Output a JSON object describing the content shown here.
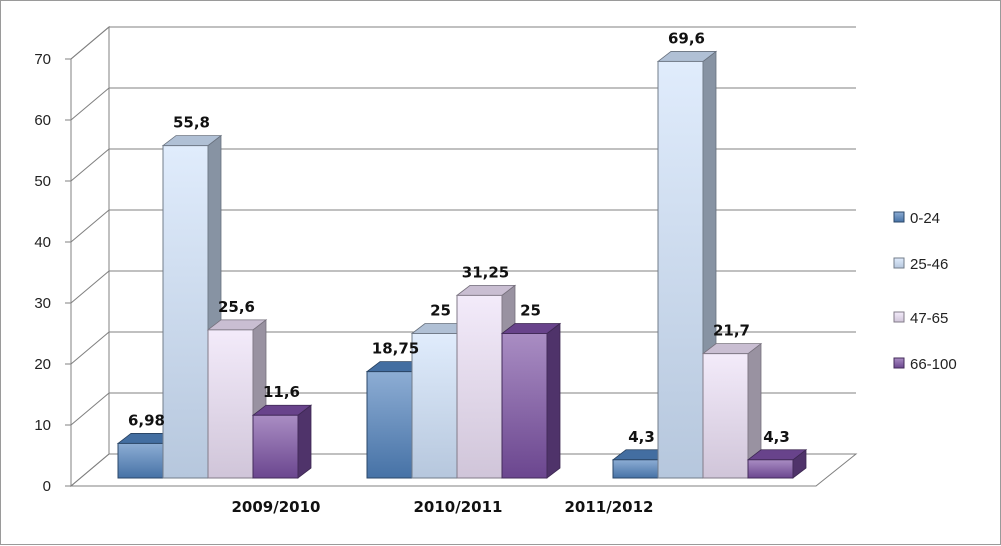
{
  "chart_data": {
    "type": "bar",
    "style": "3d-clustered-column",
    "categories": [
      "2009/2010",
      "2010/2011",
      "2011/2012"
    ],
    "series": [
      {
        "name": "0-24",
        "values": [
          6.98,
          18.75,
          4.3
        ],
        "labels": [
          "6,98",
          "18,75",
          "4,3"
        ],
        "color": "#4f81bd"
      },
      {
        "name": "25-46",
        "values": [
          55.8,
          25,
          69.6
        ],
        "labels": [
          "55,8",
          "25",
          "69,6"
        ],
        "color": "#cfe2fb"
      },
      {
        "name": "47-65",
        "values": [
          25.6,
          31.25,
          21.7
        ],
        "labels": [
          "25,6",
          "31,25",
          "21,7"
        ],
        "color": "#ece0f7"
      },
      {
        "name": "66-100",
        "values": [
          11.6,
          25,
          4.3
        ],
        "labels": [
          "11,6",
          "25",
          "4,3"
        ],
        "color": "#7a4fa3"
      }
    ],
    "ylim": [
      0,
      70
    ],
    "yticks": [
      0,
      10,
      20,
      30,
      40,
      50,
      60,
      70
    ],
    "title": "",
    "xlabel": "",
    "ylabel": "",
    "grid": true,
    "legend": "right"
  }
}
